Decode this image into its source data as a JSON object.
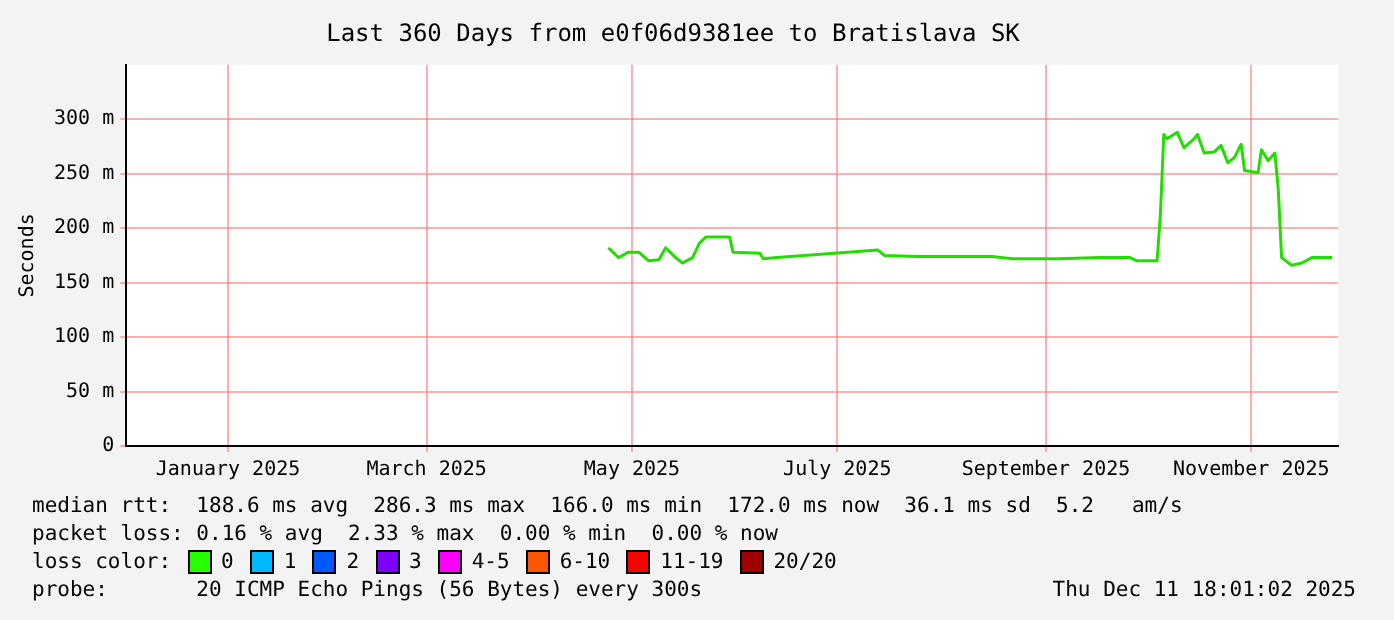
{
  "chart_data": {
    "type": "line",
    "title": "Last 360 Days from e0f06d9381ee to Bratislava SK",
    "ylabel": "Seconds",
    "x": [
      "2025-05-09",
      "2025-05-12",
      "2025-05-15",
      "2025-05-18",
      "2025-05-21",
      "2025-05-24",
      "2025-05-26",
      "2025-05-29",
      "2025-05-31",
      "2025-06-03",
      "2025-06-05",
      "2025-06-07",
      "2025-06-14",
      "2025-06-15",
      "2025-06-23",
      "2025-06-24",
      "2025-06-28",
      "2025-07-28",
      "2025-07-30",
      "2025-08-09",
      "2025-08-31",
      "2025-09-06",
      "2025-09-20",
      "2025-10-02",
      "2025-10-11",
      "2025-10-13",
      "2025-10-19",
      "2025-10-20",
      "2025-10-21",
      "2025-10-22",
      "2025-10-25",
      "2025-10-27",
      "2025-10-30",
      "2025-10-31",
      "2025-11-02",
      "2025-11-05",
      "2025-11-07",
      "2025-11-09",
      "2025-11-11",
      "2025-11-13",
      "2025-11-14",
      "2025-11-18",
      "2025-11-19",
      "2025-11-21",
      "2025-11-23",
      "2025-11-24",
      "2025-11-25",
      "2025-11-28",
      "2025-12-01",
      "2025-12-04",
      "2025-12-10"
    ],
    "series": [
      {
        "color": "#22dd00",
        "values": [
          182,
          173,
          178,
          178,
          170,
          171,
          182,
          173,
          168,
          173,
          186,
          192,
          192,
          178,
          177,
          172,
          173,
          180,
          175,
          174,
          174,
          172,
          172,
          173,
          173,
          170,
          170,
          213,
          286,
          282,
          288,
          274,
          282,
          286,
          269,
          270,
          276,
          260,
          265,
          277,
          253,
          251,
          272,
          262,
          269,
          236,
          173,
          166,
          168,
          173,
          173
        ]
      }
    ],
    "xlim": [
      "2024-12-16T18:01",
      "2025-12-11T18:01"
    ],
    "xticks": [
      {
        "value": "2025-01-16",
        "label": "January 2025"
      },
      {
        "value": "2025-03-16",
        "label": "March 2025"
      },
      {
        "value": "2025-05-16",
        "label": "May 2025"
      },
      {
        "value": "2025-07-16",
        "label": "July 2025"
      },
      {
        "value": "2025-09-16",
        "label": "September 2025"
      },
      {
        "value": "2025-11-16",
        "label": "November 2025"
      }
    ],
    "ylim": [
      0,
      350
    ],
    "yticks": [
      {
        "value": 0,
        "label": "0"
      },
      {
        "value": 50,
        "label": "50 m"
      },
      {
        "value": 100,
        "label": "100 m"
      },
      {
        "value": 150,
        "label": "150 m"
      },
      {
        "value": 200,
        "label": "200 m"
      },
      {
        "value": 250,
        "label": "250 m"
      },
      {
        "value": 300,
        "label": "300 m"
      }
    ],
    "grid": true,
    "legend": false,
    "marker": "none",
    "line_style": "solid",
    "annotations": [
      "median rtt:  188.6 ms avg  286.3 ms max  166.0 ms min  172.0 ms now  36.1 ms sd  5.2   am/s",
      "packet loss: 0.16 % avg  2.33 % max  0.00 % min  0.00 % now",
      "loss color:",
      "0",
      "1",
      "2",
      "3",
      "4-5",
      "6-10",
      "11-19",
      "20/20",
      "probe:       20 ICMP Echo Pings (56 Bytes) every 300s",
      "Thu Dec 11 18:01:02 2025"
    ]
  }
}
